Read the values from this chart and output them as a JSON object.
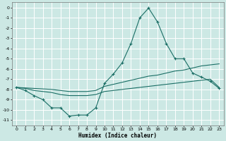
{
  "xlabel": "Humidex (Indice chaleur)",
  "background_color": "#cce8e4",
  "grid_color": "#ffffff",
  "line_color": "#1a6e65",
  "xlim": [
    -0.5,
    23.5
  ],
  "ylim": [
    -11.5,
    0.5
  ],
  "xticks": [
    0,
    1,
    2,
    3,
    4,
    5,
    6,
    7,
    8,
    9,
    10,
    11,
    12,
    13,
    14,
    15,
    16,
    17,
    18,
    19,
    20,
    21,
    22,
    23
  ],
  "yticks": [
    0,
    -1,
    -2,
    -3,
    -4,
    -5,
    -6,
    -7,
    -8,
    -9,
    -10,
    -11
  ],
  "line1_x": [
    0,
    1,
    2,
    3,
    4,
    5,
    6,
    7,
    8,
    9,
    10,
    11,
    12,
    13,
    14,
    15,
    16,
    17,
    18,
    19,
    20,
    21,
    22,
    23
  ],
  "line1_y": [
    -7.8,
    -8.1,
    -8.6,
    -9.0,
    -9.8,
    -9.8,
    -10.6,
    -10.5,
    -10.5,
    -9.8,
    -7.4,
    -6.5,
    -5.4,
    -3.5,
    -1.0,
    -0.05,
    -1.4,
    -3.5,
    -5.0,
    -5.0,
    -6.4,
    -6.8,
    -7.2,
    -7.9
  ],
  "line2_x": [
    0,
    1,
    2,
    3,
    4,
    5,
    6,
    7,
    8,
    9,
    10,
    11,
    12,
    13,
    14,
    15,
    16,
    17,
    18,
    19,
    20,
    21,
    22,
    23
  ],
  "line2_y": [
    -7.8,
    -7.85,
    -7.9,
    -7.95,
    -8.0,
    -8.1,
    -8.2,
    -8.2,
    -8.2,
    -8.1,
    -7.7,
    -7.5,
    -7.3,
    -7.1,
    -6.9,
    -6.7,
    -6.6,
    -6.4,
    -6.2,
    -6.1,
    -5.9,
    -5.7,
    -5.6,
    -5.5
  ],
  "line3_x": [
    0,
    1,
    2,
    3,
    4,
    5,
    6,
    7,
    8,
    9,
    10,
    11,
    12,
    13,
    14,
    15,
    16,
    17,
    18,
    19,
    20,
    21,
    22,
    23
  ],
  "line3_y": [
    -7.8,
    -7.9,
    -8.1,
    -8.2,
    -8.3,
    -8.5,
    -8.6,
    -8.6,
    -8.6,
    -8.5,
    -8.2,
    -8.1,
    -8.0,
    -7.9,
    -7.8,
    -7.7,
    -7.6,
    -7.5,
    -7.4,
    -7.3,
    -7.2,
    -7.1,
    -7.0,
    -7.8
  ]
}
